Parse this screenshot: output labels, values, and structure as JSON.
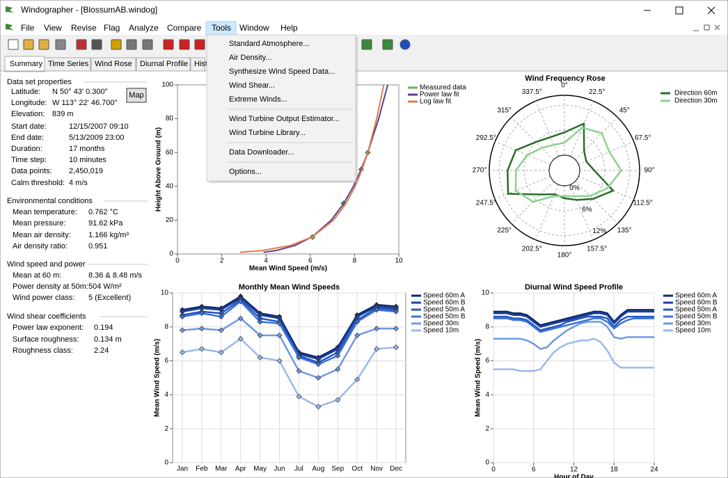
{
  "window": {
    "title": "Windographer - [BlossumAB.windog]"
  },
  "menu": [
    "File",
    "View",
    "Revise",
    "Flag",
    "Analyze",
    "Compare",
    "Tools",
    "Window",
    "Help"
  ],
  "tools_menu": {
    "groups": [
      [
        "Standard Atmosphere...",
        "Air Density...",
        "Synthesize Wind Speed Data...",
        "Wind Shear...",
        "Extreme Winds..."
      ],
      [
        "Wind Turbine Output Estimator...",
        "Wind Turbine Library..."
      ],
      [
        "Data Downloader..."
      ],
      [
        "Options..."
      ]
    ]
  },
  "tabs": [
    "Summary",
    "Time Series",
    "Wind Rose",
    "Diurnal Profile",
    "Hist"
  ],
  "summary": {
    "map_button": "Map",
    "sections": [
      {
        "title": "Data set properties",
        "rows": [
          [
            "Latitude:",
            "N 50° 43' 0.300\""
          ],
          [
            "Longitude:",
            "W 113° 22' 46.700\""
          ],
          [
            "Elevation:",
            "839 m"
          ],
          [
            "Start date:",
            "12/15/2007 09:10"
          ],
          [
            "End date:",
            "5/13/2009 23:00"
          ],
          [
            "Duration:",
            "17 months"
          ],
          [
            "Time step:",
            "10 minutes"
          ],
          [
            "Data points:",
            "2,450,019"
          ],
          [
            "Calm threshold:",
            "4 m/s"
          ]
        ]
      },
      {
        "title": "Environmental conditions",
        "rows": [
          [
            "Mean temperature:",
            "0.762 °C"
          ],
          [
            "Mean pressure:",
            "91.62 kPa"
          ],
          [
            "Mean air density:",
            "1.166 kg/m³"
          ],
          [
            "Air density ratio:",
            "0.951"
          ]
        ]
      },
      {
        "title": "Wind speed and power",
        "rows": [
          [
            "Mean at 60 m:",
            "8.36 & 8.48 m/s"
          ],
          [
            "Power density at 50m:",
            "504 W/m²"
          ],
          [
            "Wind power class:",
            "5  (Excellent)"
          ]
        ]
      },
      {
        "title": "Wind shear coefficients",
        "rows": [
          [
            "Power law exponent:",
            "0.194"
          ],
          [
            "Surface roughness:",
            "0.134 m"
          ],
          [
            "Roughness class:",
            "2.24"
          ]
        ]
      }
    ]
  },
  "chart_data": [
    {
      "type": "line",
      "xlabel": "Mean Wind Speed (m/s)",
      "ylabel": "Height Above Ground (m)",
      "xlim": [
        0,
        10
      ],
      "xticks": [
        0,
        2,
        4,
        6,
        8,
        10
      ],
      "ylim": [
        0,
        100
      ],
      "yticks": [
        0,
        20,
        40,
        60,
        80,
        100
      ],
      "legend": "right",
      "series": [
        {
          "name": "Measured data",
          "color": "#5cb85c",
          "marker": "diamond",
          "x": [
            6.1,
            7.5,
            8.3,
            8.6
          ],
          "values": [
            10,
            30,
            50,
            60
          ]
        },
        {
          "name": "Power law fit",
          "color": "#5b3f8c",
          "x": [
            3.89,
            4.45,
            5.31,
            6.07,
            6.95,
            7.52,
            7.95,
            8.3,
            8.6,
            9.09,
            9.5
          ],
          "values": [
            1,
            2,
            5,
            10,
            20,
            30,
            40,
            50,
            60,
            80,
            100
          ]
        },
        {
          "name": "Log law fit",
          "color": "#e07a50",
          "x": [
            2.83,
            3.81,
            5.1,
            6.08,
            7.05,
            7.62,
            8.03,
            8.34,
            8.6,
            9.0,
            9.32
          ],
          "values": [
            1,
            2,
            5,
            10,
            20,
            30,
            40,
            50,
            60,
            80,
            100
          ]
        }
      ]
    },
    {
      "type": "radar",
      "title": "Wind Frequency Rose",
      "categories": [
        "0°",
        "22.5°",
        "45°",
        "67.5°",
        "90°",
        "112.5°",
        "135°",
        "157.5°",
        "180°",
        "202.5°",
        "225°",
        "247.5°",
        "270°",
        "292.5°",
        "315°",
        "337.5°"
      ],
      "rlim": [
        0,
        14.4
      ],
      "rticks": [
        {
          "value": 0,
          "label": "0%"
        },
        {
          "value": 6,
          "label": "6%"
        },
        {
          "value": 12,
          "label": "12%"
        }
      ],
      "legend": "right",
      "series": [
        {
          "name": "Direction 60m",
          "color": "#2d6b2d",
          "values": [
            5.5,
            8.5,
            3.0,
            2.0,
            3.5,
            9.0,
            6.0,
            4.0,
            3.0,
            2.5,
            4.5,
            11.0,
            10.0,
            9.0,
            6.0,
            5.0
          ]
        },
        {
          "name": "Direction 30m",
          "color": "#8fd08f",
          "values": [
            3.0,
            7.5,
            9.0,
            8.0,
            10.0,
            7.5,
            5.0,
            3.0,
            2.5,
            3.0,
            7.0,
            9.0,
            8.0,
            6.0,
            4.0,
            3.0
          ]
        }
      ]
    },
    {
      "type": "line",
      "title": "Monthly Mean Wind Speeds",
      "ylabel": "Mean Wind Speed (m/s)",
      "categories": [
        "Jan",
        "Feb",
        "Mar",
        "Apr",
        "May",
        "Jun",
        "Jul",
        "Aug",
        "Sep",
        "Oct",
        "Nov",
        "Dec"
      ],
      "ylim": [
        0,
        10
      ],
      "yticks": [
        0,
        2,
        4,
        6,
        8,
        10
      ],
      "legend": "right",
      "series": [
        {
          "name": "Speed 60m A",
          "color": "#0b2a6e",
          "marker": "diamond",
          "values": [
            9.0,
            9.2,
            9.1,
            9.8,
            8.8,
            8.6,
            6.5,
            6.2,
            6.8,
            8.7,
            9.3,
            9.2
          ]
        },
        {
          "name": "Speed 60m B",
          "color": "#1b3f99",
          "marker": "diamond",
          "values": [
            8.9,
            9.1,
            9.0,
            9.7,
            8.7,
            8.5,
            6.4,
            6.1,
            6.7,
            8.6,
            9.2,
            9.1
          ]
        },
        {
          "name": "Speed 50m A",
          "color": "#2357c6",
          "marker": "diamond",
          "values": [
            8.7,
            8.9,
            8.8,
            9.6,
            8.5,
            8.3,
            6.3,
            5.9,
            6.5,
            8.4,
            9.1,
            9.0
          ]
        },
        {
          "name": "Speed 50m B",
          "color": "#3c72d6",
          "marker": "diamond",
          "values": [
            8.6,
            8.8,
            8.6,
            9.5,
            8.3,
            8.2,
            6.2,
            5.8,
            6.3,
            8.3,
            9.0,
            8.9
          ]
        },
        {
          "name": "Speed 30m",
          "color": "#6f98e0",
          "marker": "diamond",
          "values": [
            7.8,
            7.9,
            7.8,
            8.5,
            7.5,
            7.5,
            5.4,
            5.0,
            5.5,
            7.5,
            7.9,
            7.9
          ]
        },
        {
          "name": "Speed 10m",
          "color": "#9ab9ec",
          "marker": "diamond",
          "values": [
            6.5,
            6.7,
            6.5,
            7.3,
            6.2,
            6.0,
            3.9,
            3.3,
            3.7,
            4.9,
            6.7,
            6.8
          ]
        }
      ]
    },
    {
      "type": "line",
      "title": "Diurnal Wind Speed Profile",
      "xlabel": "Hour of Day",
      "ylabel": "Mean Wind Speed (m/s)",
      "x": [
        0,
        1,
        2,
        3,
        4,
        5,
        6,
        7,
        8,
        9,
        10,
        11,
        12,
        13,
        14,
        15,
        16,
        17,
        18,
        19,
        20,
        21,
        22,
        23,
        24
      ],
      "xlim": [
        0,
        24
      ],
      "xticks": [
        0,
        6,
        12,
        18,
        24
      ],
      "ylim": [
        0,
        10
      ],
      "yticks": [
        0,
        2,
        4,
        6,
        8,
        10
      ],
      "legend": "right",
      "series": [
        {
          "name": "Speed 60m A",
          "color": "#0b2a6e",
          "values": [
            8.9,
            8.9,
            8.9,
            8.8,
            8.8,
            8.7,
            8.4,
            8.1,
            8.2,
            8.3,
            8.4,
            8.5,
            8.6,
            8.7,
            8.8,
            8.9,
            8.9,
            8.8,
            8.3,
            8.7,
            9.0,
            9.0,
            9.0,
            9.0,
            9.0
          ]
        },
        {
          "name": "Speed 60m B",
          "color": "#1b3f99",
          "values": [
            8.8,
            8.8,
            8.8,
            8.7,
            8.7,
            8.6,
            8.3,
            8.0,
            8.1,
            8.2,
            8.3,
            8.4,
            8.5,
            8.6,
            8.7,
            8.8,
            8.8,
            8.7,
            8.2,
            8.6,
            8.9,
            8.9,
            8.9,
            8.9,
            8.9
          ]
        },
        {
          "name": "Speed 50m A",
          "color": "#2357c6",
          "values": [
            8.6,
            8.6,
            8.6,
            8.5,
            8.5,
            8.4,
            8.1,
            7.8,
            7.9,
            8.0,
            8.1,
            8.3,
            8.4,
            8.5,
            8.6,
            8.6,
            8.6,
            8.5,
            8.0,
            8.4,
            8.6,
            8.6,
            8.6,
            8.6,
            8.6
          ]
        },
        {
          "name": "Speed 50m B",
          "color": "#3c72d6",
          "values": [
            8.5,
            8.5,
            8.5,
            8.4,
            8.4,
            8.3,
            8.0,
            7.7,
            7.8,
            7.9,
            8.0,
            8.1,
            8.2,
            8.3,
            8.4,
            8.5,
            8.5,
            8.3,
            7.9,
            8.2,
            8.4,
            8.5,
            8.5,
            8.5,
            8.5
          ]
        },
        {
          "name": "Speed 30m",
          "color": "#6f98e0",
          "values": [
            7.3,
            7.3,
            7.3,
            7.3,
            7.3,
            7.2,
            7.0,
            6.7,
            6.8,
            7.2,
            7.5,
            7.8,
            8.0,
            8.2,
            8.3,
            8.3,
            8.3,
            8.0,
            7.4,
            7.3,
            7.4,
            7.4,
            7.4,
            7.4,
            7.4
          ]
        },
        {
          "name": "Speed 10m",
          "color": "#9ab9ec",
          "values": [
            5.5,
            5.5,
            5.5,
            5.5,
            5.4,
            5.4,
            5.4,
            5.5,
            6.0,
            6.5,
            6.8,
            7.0,
            7.1,
            7.2,
            7.2,
            7.3,
            7.1,
            6.6,
            5.9,
            5.6,
            5.6,
            5.6,
            5.6,
            5.6,
            5.6
          ]
        }
      ]
    }
  ]
}
